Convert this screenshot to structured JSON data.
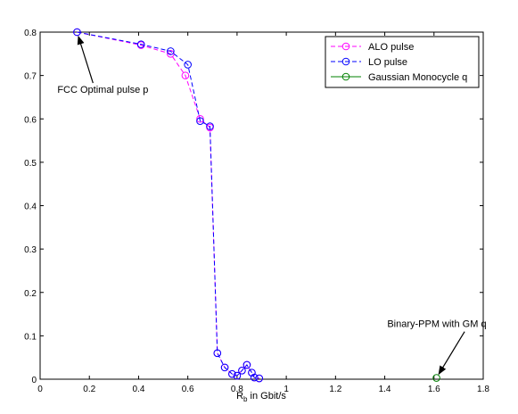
{
  "chart_data": {
    "type": "line",
    "xlabel": {
      "main": "R",
      "subscript": "b",
      "rest": " in Gbit/s"
    },
    "ylabel": "",
    "xlim": [
      0,
      1.8
    ],
    "ylim": [
      0,
      0.8
    ],
    "xticks": [
      0,
      0.2,
      0.4,
      0.6,
      0.8,
      1,
      1.2,
      1.4,
      1.6,
      1.8
    ],
    "xtick_labels": [
      "0",
      "0.2",
      "0.4",
      "0.6",
      "0.8",
      "1",
      "1.2",
      "1.4",
      "1.6",
      "1.8"
    ],
    "yticks": [
      0,
      0.1,
      0.2,
      0.3,
      0.4,
      0.5,
      0.6,
      0.7,
      0.8
    ],
    "ytick_labels": [
      "0",
      "0.1",
      "0.2",
      "0.3",
      "0.4",
      "0.5",
      "0.6",
      "0.7",
      "0.8"
    ],
    "grid": false,
    "legend_position": "top-right",
    "series": [
      {
        "name": "ALO pulse",
        "color": "#ff00ff",
        "line_style": "dashed",
        "marker": "circle",
        "x": [
          0.15,
          0.41,
          0.53,
          0.59,
          0.65,
          0.69,
          0.72,
          0.75,
          0.78,
          0.8,
          0.82,
          0.84,
          0.86,
          0.87,
          0.89
        ],
        "y": [
          0.8,
          0.77,
          0.75,
          0.7,
          0.6,
          0.58,
          0.06,
          0.027,
          0.012,
          0.008,
          0.02,
          0.033,
          0.015,
          0.004,
          0.002
        ]
      },
      {
        "name": "LO pulse",
        "color": "#0000ff",
        "line_style": "dashed",
        "marker": "circle",
        "x": [
          0.15,
          0.41,
          0.53,
          0.6,
          0.65,
          0.69,
          0.72,
          0.75,
          0.78,
          0.8,
          0.82,
          0.84,
          0.86,
          0.87,
          0.89
        ],
        "y": [
          0.8,
          0.772,
          0.756,
          0.725,
          0.595,
          0.583,
          0.06,
          0.027,
          0.012,
          0.008,
          0.02,
          0.033,
          0.015,
          0.004,
          0.002
        ]
      },
      {
        "name": "Gaussian Monocycle q",
        "color": "#008000",
        "line_style": "solid",
        "marker": "circle",
        "x": [
          1.61
        ],
        "y": [
          0.003
        ]
      }
    ],
    "annotations": [
      {
        "text": "FCC Optimal pulse p",
        "target_x": 0.15,
        "target_y": 0.8,
        "text_x": 0.07,
        "text_y": 0.66
      },
      {
        "text": "Binary-PPM with GM q",
        "target_x": 1.61,
        "target_y": 0.003,
        "text_x": 1.41,
        "text_y": 0.12
      }
    ]
  }
}
